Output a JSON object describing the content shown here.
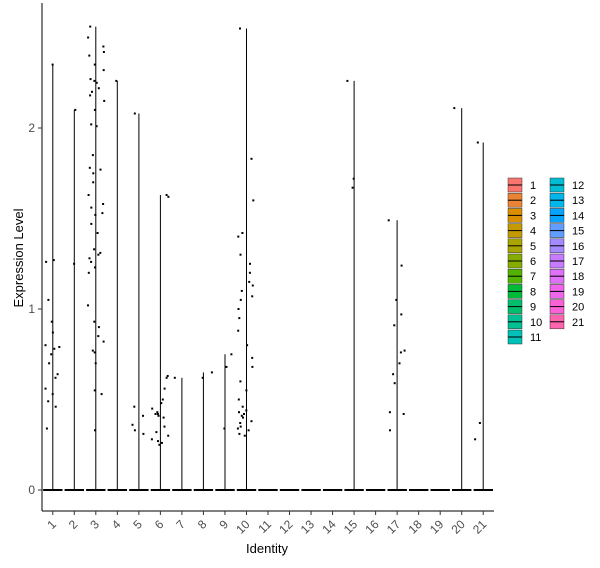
{
  "chart_data": {
    "type": "violin",
    "title": "",
    "xlabel": "Identity",
    "ylabel": "Expression Level",
    "ylim": [
      -0.1,
      2.65
    ],
    "y_ticks": [
      0,
      1,
      2
    ],
    "grid": false,
    "legend_position": "right",
    "categories": [
      "1",
      "2",
      "3",
      "4",
      "5",
      "6",
      "7",
      "8",
      "9",
      "10",
      "11",
      "12",
      "13",
      "14",
      "15",
      "16",
      "17",
      "18",
      "19",
      "20",
      "21"
    ],
    "colors": {
      "1": "#F8766D",
      "2": "#EB8335",
      "3": "#DA8F00",
      "4": "#C49A00",
      "5": "#A9A400",
      "6": "#86AC00",
      "7": "#53B400",
      "8": "#00BA38",
      "9": "#00BE6C",
      "10": "#00C094",
      "11": "#00C0B7",
      "12": "#00BDD4",
      "13": "#00B6EB",
      "14": "#06A4FF",
      "15": "#619CFF",
      "16": "#A58AFF",
      "17": "#C77CFF",
      "18": "#DF70F8",
      "19": "#F066EA",
      "20": "#FB61D7",
      "21": "#FF65AE"
    },
    "series": [
      {
        "name": "1",
        "max": 2.35,
        "values": [
          2.35,
          1.27,
          1.26,
          1.05,
          0.93,
          0.87,
          0.8,
          0.79,
          0.78,
          0.75,
          0.7,
          0.64,
          0.62,
          0.56,
          0.53,
          0.49,
          0.46,
          0.34
        ]
      },
      {
        "name": "2",
        "max": 2.1,
        "values": [
          2.1,
          1.25
        ]
      },
      {
        "name": "3",
        "max": 2.56,
        "values": [
          2.56,
          2.5,
          2.45,
          2.42,
          2.4,
          2.35,
          2.32,
          2.27,
          2.26,
          2.25,
          2.22,
          2.2,
          2.18,
          2.15,
          2.1,
          2.02,
          2.01,
          1.85,
          1.78,
          1.77,
          1.75,
          1.7,
          1.63,
          1.58,
          1.56,
          1.53,
          1.52,
          1.47,
          1.42,
          1.33,
          1.31,
          1.3,
          1.28,
          1.26,
          1.23,
          1.2,
          1.02,
          0.93,
          0.9,
          0.85,
          0.82,
          0.77,
          0.76,
          0.7,
          0.55,
          0.53,
          0.33
        ]
      },
      {
        "name": "4",
        "max": 2.26,
        "values": [
          2.26
        ]
      },
      {
        "name": "5",
        "max": 2.08,
        "values": [
          2.08,
          0.46,
          0.41,
          0.36,
          0.33,
          0.31
        ]
      },
      {
        "name": "6",
        "max": 1.63,
        "values": [
          1.63,
          1.62,
          0.63,
          0.62,
          0.56,
          0.5,
          0.48,
          0.45,
          0.43,
          0.42,
          0.42,
          0.41,
          0.4,
          0.35,
          0.32,
          0.3,
          0.28,
          0.27,
          0.26,
          0.25
        ]
      },
      {
        "name": "7",
        "max": 0.62,
        "values": [
          0.62
        ]
      },
      {
        "name": "8",
        "max": 0.65,
        "values": [
          0.65,
          0.62
        ]
      },
      {
        "name": "9",
        "max": 0.75,
        "values": [
          0.75,
          0.68,
          0.34
        ]
      },
      {
        "name": "10",
        "max": 2.55,
        "values": [
          2.55,
          1.83,
          1.6,
          1.42,
          1.4,
          1.3,
          1.25,
          1.2,
          1.15,
          1.13,
          1.1,
          1.07,
          1.05,
          1.0,
          0.95,
          0.88,
          0.8,
          0.73,
          0.68,
          0.6,
          0.55,
          0.5,
          0.46,
          0.44,
          0.43,
          0.42,
          0.41,
          0.4,
          0.38,
          0.37,
          0.35,
          0.34,
          0.33,
          0.31,
          0.3
        ]
      },
      {
        "name": "11",
        "max": 0,
        "values": []
      },
      {
        "name": "12",
        "max": 0,
        "values": []
      },
      {
        "name": "13",
        "max": 0,
        "values": []
      },
      {
        "name": "14",
        "max": 0,
        "values": []
      },
      {
        "name": "15",
        "max": 2.26,
        "values": [
          2.26,
          1.72,
          1.67
        ]
      },
      {
        "name": "16",
        "max": 0,
        "values": []
      },
      {
        "name": "17",
        "max": 1.49,
        "values": [
          1.49,
          1.24,
          1.05,
          0.97,
          0.91,
          0.77,
          0.76,
          0.7,
          0.64,
          0.59,
          0.43,
          0.42,
          0.33
        ]
      },
      {
        "name": "18",
        "max": 0,
        "values": []
      },
      {
        "name": "19",
        "max": 0,
        "values": []
      },
      {
        "name": "20",
        "max": 2.11,
        "values": [
          2.11
        ]
      },
      {
        "name": "21",
        "max": 1.92,
        "values": [
          1.92,
          0.37,
          0.28
        ]
      }
    ]
  }
}
